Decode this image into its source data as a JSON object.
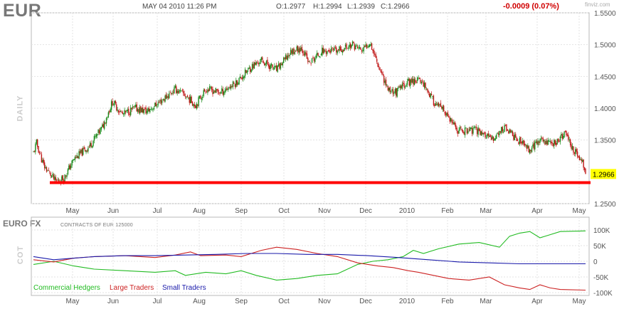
{
  "header": {
    "symbol": "EUR",
    "date": "MAY 04 2010 11:26 PM",
    "open": "O:1.2977",
    "high": "H:1.2994",
    "low": "L:1.2939",
    "close": "C:1.2966",
    "change": "-0.0009 (0.07%)",
    "brand": "finviz.com"
  },
  "labels": {
    "daily": "DAILY",
    "cot": "COT",
    "cot_title": "EURO FX",
    "cot_subtitle": "CONTRACTS OF EUR 125000"
  },
  "colors": {
    "up": "#1a8a1a",
    "down": "#c01818",
    "support": "#ff0000",
    "commercial": "#22bb22",
    "large": "#cc2222",
    "small": "#1a1aaa",
    "price_tag": "#ffff00"
  },
  "chart_data": [
    {
      "type": "candlestick",
      "last_price_label": "1.2966",
      "ylim": [
        1.25,
        1.55
      ],
      "y_ticks": [
        "1.5500",
        "1.5000",
        "1.4500",
        "1.4000",
        "1.3500",
        "1.2966",
        "1.2500"
      ],
      "y_tick_values": [
        1.55,
        1.5,
        1.45,
        1.4,
        1.35,
        1.2966,
        1.25
      ],
      "x_ticks": [
        "May",
        "Jun",
        "Jul",
        "Aug",
        "Sep",
        "Oct",
        "Nov",
        "Dec",
        "2010",
        "Feb",
        "Mar",
        "Apr",
        "May"
      ],
      "support_level": 1.283,
      "close_anchors": [
        [
          0,
          1.33
        ],
        [
          3,
          1.345
        ],
        [
          10,
          1.31
        ],
        [
          22,
          1.285
        ],
        [
          30,
          1.29
        ],
        [
          40,
          1.32
        ],
        [
          55,
          1.34
        ],
        [
          68,
          1.37
        ],
        [
          78,
          1.41
        ],
        [
          88,
          1.39
        ],
        [
          100,
          1.4
        ],
        [
          112,
          1.395
        ],
        [
          125,
          1.41
        ],
        [
          140,
          1.43
        ],
        [
          150,
          1.42
        ],
        [
          160,
          1.405
        ],
        [
          170,
          1.43
        ],
        [
          185,
          1.425
        ],
        [
          200,
          1.44
        ],
        [
          215,
          1.465
        ],
        [
          225,
          1.475
        ],
        [
          240,
          1.46
        ],
        [
          255,
          1.49
        ],
        [
          265,
          1.495
        ],
        [
          272,
          1.47
        ],
        [
          285,
          1.49
        ],
        [
          300,
          1.49
        ],
        [
          315,
          1.5
        ],
        [
          325,
          1.49
        ],
        [
          332,
          1.505
        ],
        [
          340,
          1.47
        ],
        [
          350,
          1.43
        ],
        [
          358,
          1.425
        ],
        [
          368,
          1.44
        ],
        [
          378,
          1.445
        ],
        [
          385,
          1.44
        ],
        [
          395,
          1.41
        ],
        [
          405,
          1.395
        ],
        [
          418,
          1.365
        ],
        [
          428,
          1.365
        ],
        [
          440,
          1.365
        ],
        [
          452,
          1.35
        ],
        [
          465,
          1.37
        ],
        [
          478,
          1.35
        ],
        [
          490,
          1.335
        ],
        [
          500,
          1.35
        ],
        [
          515,
          1.345
        ],
        [
          525,
          1.36
        ],
        [
          535,
          1.33
        ],
        [
          540,
          1.32
        ],
        [
          545,
          1.305
        ]
      ]
    },
    {
      "type": "line",
      "ylim": [
        -100000,
        100000
      ],
      "y_ticks": [
        "100K",
        "50K",
        "0",
        "-50K",
        "-100K"
      ],
      "y_tick_values": [
        100000,
        50000,
        0,
        -50000,
        -100000
      ],
      "x_ticks": [
        "May",
        "Jun",
        "Jul",
        "Aug",
        "Sep",
        "Oct",
        "Nov",
        "Dec",
        "2010",
        "Feb",
        "Mar",
        "Apr",
        "May"
      ],
      "series": [
        {
          "name": "Commercial Hedgers",
          "color": "#22bb22",
          "points": [
            [
              0,
              -10000
            ],
            [
              20,
              0
            ],
            [
              40,
              -15000
            ],
            [
              60,
              -25000
            ],
            [
              90,
              -30000
            ],
            [
              120,
              -35000
            ],
            [
              140,
              -30000
            ],
            [
              150,
              -45000
            ],
            [
              170,
              -35000
            ],
            [
              190,
              -40000
            ],
            [
              205,
              -30000
            ],
            [
              220,
              -45000
            ],
            [
              240,
              -60000
            ],
            [
              260,
              -55000
            ],
            [
              280,
              -45000
            ],
            [
              300,
              -40000
            ],
            [
              320,
              -10000
            ],
            [
              335,
              0
            ],
            [
              350,
              5000
            ],
            [
              365,
              15000
            ],
            [
              375,
              35000
            ],
            [
              385,
              25000
            ],
            [
              400,
              40000
            ],
            [
              420,
              55000
            ],
            [
              440,
              60000
            ],
            [
              460,
              45000
            ],
            [
              470,
              80000
            ],
            [
              480,
              90000
            ],
            [
              490,
              95000
            ],
            [
              500,
              75000
            ],
            [
              510,
              85000
            ],
            [
              520,
              95000
            ],
            [
              545,
              97000
            ]
          ]
        },
        {
          "name": "Large Traders",
          "color": "#cc2222",
          "points": [
            [
              0,
              5000
            ],
            [
              20,
              -2000
            ],
            [
              40,
              10000
            ],
            [
              60,
              15000
            ],
            [
              90,
              18000
            ],
            [
              120,
              12000
            ],
            [
              140,
              20000
            ],
            [
              155,
              30000
            ],
            [
              165,
              18000
            ],
            [
              190,
              20000
            ],
            [
              205,
              15000
            ],
            [
              225,
              35000
            ],
            [
              240,
              45000
            ],
            [
              260,
              38000
            ],
            [
              280,
              25000
            ],
            [
              300,
              15000
            ],
            [
              320,
              -5000
            ],
            [
              340,
              -15000
            ],
            [
              355,
              -20000
            ],
            [
              370,
              -30000
            ],
            [
              380,
              -35000
            ],
            [
              395,
              -45000
            ],
            [
              410,
              -55000
            ],
            [
              430,
              -60000
            ],
            [
              450,
              -50000
            ],
            [
              465,
              -75000
            ],
            [
              480,
              -85000
            ],
            [
              490,
              -90000
            ],
            [
              500,
              -75000
            ],
            [
              510,
              -85000
            ],
            [
              520,
              -90000
            ],
            [
              545,
              -92000
            ]
          ]
        },
        {
          "name": "Small Traders",
          "color": "#1a1aaa",
          "points": [
            [
              0,
              15000
            ],
            [
              20,
              5000
            ],
            [
              40,
              10000
            ],
            [
              60,
              15000
            ],
            [
              90,
              18000
            ],
            [
              120,
              18000
            ],
            [
              150,
              20000
            ],
            [
              180,
              22000
            ],
            [
              210,
              25000
            ],
            [
              240,
              25000
            ],
            [
              270,
              22000
            ],
            [
              300,
              22000
            ],
            [
              330,
              18000
            ],
            [
              360,
              12000
            ],
            [
              390,
              5000
            ],
            [
              420,
              -2000
            ],
            [
              450,
              -5000
            ],
            [
              480,
              -8000
            ],
            [
              510,
              -8000
            ],
            [
              545,
              -8000
            ]
          ]
        }
      ]
    }
  ]
}
